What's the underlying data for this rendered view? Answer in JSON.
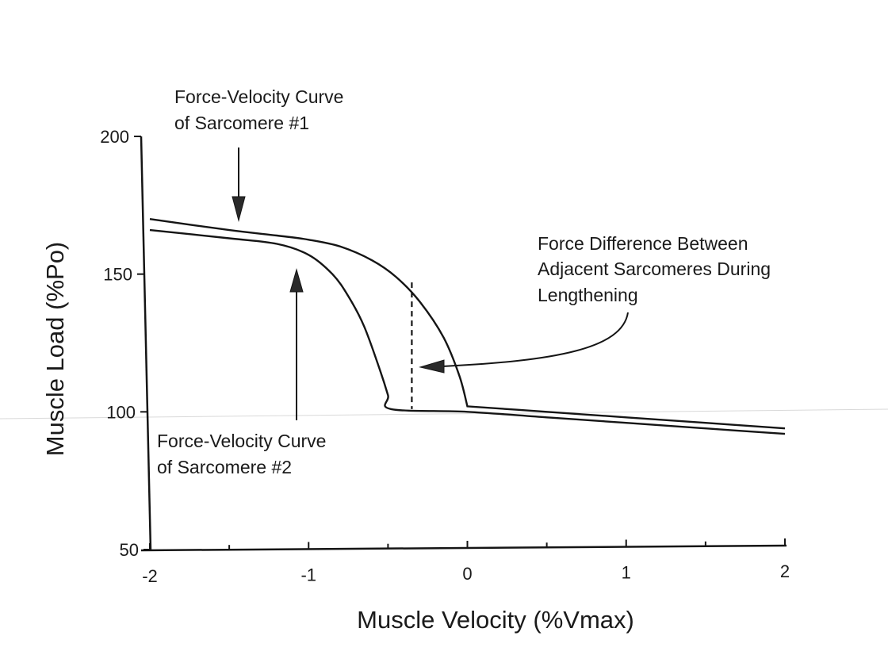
{
  "chart_data": {
    "type": "line",
    "title": "",
    "xlabel": "Muscle Velocity (%Vmax)",
    "ylabel": "Muscle Load (%Po)",
    "xlim": [
      -2,
      2
    ],
    "ylim": [
      50,
      200
    ],
    "x_ticks": [
      -2,
      -1,
      0,
      1,
      2
    ],
    "x_tick_labels": [
      "-2",
      "-1",
      "0",
      "1",
      "2"
    ],
    "y_ticks": [
      50,
      100,
      150,
      200
    ],
    "y_tick_labels": [
      "50",
      "100",
      "150",
      "200"
    ],
    "grid": false,
    "series": [
      {
        "name": "Force-Velocity Curve of Sarcomere #1",
        "x": [
          -2,
          -1.5,
          -1.2,
          -1.0,
          -0.8,
          -0.6,
          -0.45,
          -0.3,
          -0.15,
          -0.05,
          0,
          0,
          0.5,
          1,
          1.5,
          2
        ],
        "y": [
          170,
          166,
          164,
          162.5,
          160,
          155,
          149,
          140,
          127,
          113,
          102,
          102,
          100,
          98,
          96,
          94
        ]
      },
      {
        "name": "Force-Velocity Curve of Sarcomere #2",
        "x": [
          -2,
          -1.5,
          -1.2,
          -1.0,
          -0.85,
          -0.75,
          -0.65,
          -0.55,
          -0.5,
          -0.48,
          0,
          0.5,
          1,
          1.5,
          2
        ],
        "y": [
          166,
          163,
          161,
          157,
          150,
          142,
          131,
          115,
          106,
          101,
          100,
          98,
          96,
          94,
          92
        ]
      }
    ],
    "force_difference": {
      "x": -0.35,
      "y_low": 101,
      "y_high": 147
    },
    "annotations": [
      {
        "lines": [
          "Force-Velocity Curve",
          "of Sarcomere #1"
        ],
        "target": "Sarcomere #1"
      },
      {
        "lines": [
          "Force-Velocity Curve",
          "of Sarcomere #2"
        ],
        "target": "Sarcomere #2"
      },
      {
        "lines": [
          "Force Difference Between",
          "Adjacent Sarcomeres During",
          "Lengthening"
        ],
        "target": "dashed line"
      }
    ]
  }
}
